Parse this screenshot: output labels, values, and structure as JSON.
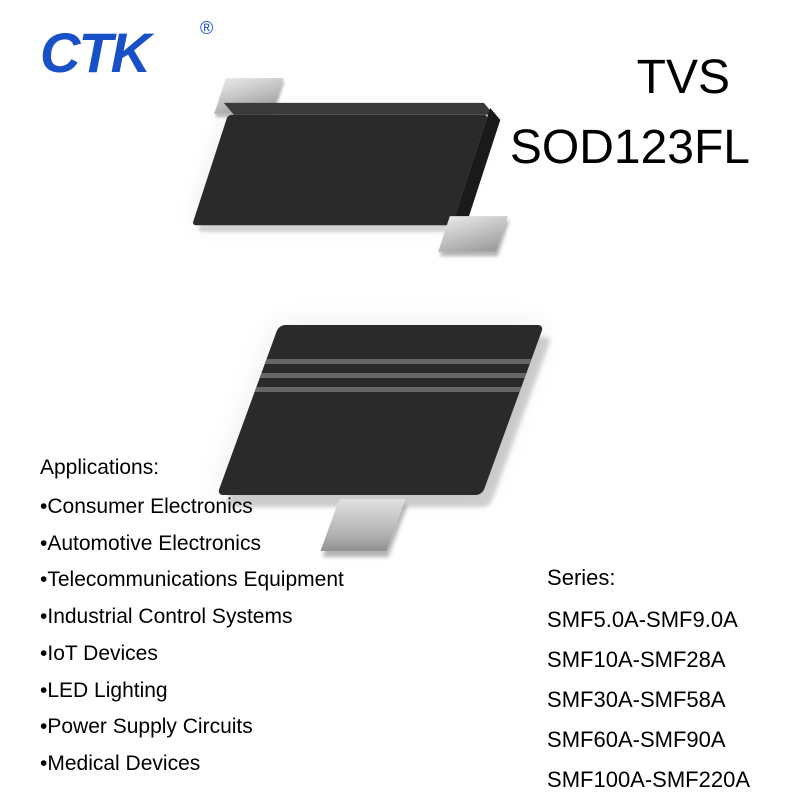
{
  "brand": {
    "logo_text": "CTK",
    "registered": "®",
    "logo_color": "#1850c8"
  },
  "heading": {
    "line1": "TVS",
    "line2": "SOD123FL",
    "color": "#000000",
    "fontsize": 48
  },
  "component": {
    "body_color": "#2a2a2a",
    "lead_color": "#c0c0c0",
    "stripe_color": "#666666",
    "background": "#ffffff"
  },
  "applications": {
    "title": "Applications:",
    "fontsize": 21,
    "items": [
      "Consumer Electronics",
      "Automotive Electronics",
      "Telecommunications Equipment",
      "Industrial Control Systems",
      "IoT Devices",
      "LED Lighting",
      "Power Supply Circuits",
      "Medical Devices"
    ]
  },
  "series": {
    "title": "Series:",
    "fontsize": 22,
    "items": [
      "SMF5.0A-SMF9.0A",
      "SMF10A-SMF28A",
      "SMF30A-SMF58A",
      "SMF60A-SMF90A",
      "SMF100A-SMF220A"
    ]
  }
}
